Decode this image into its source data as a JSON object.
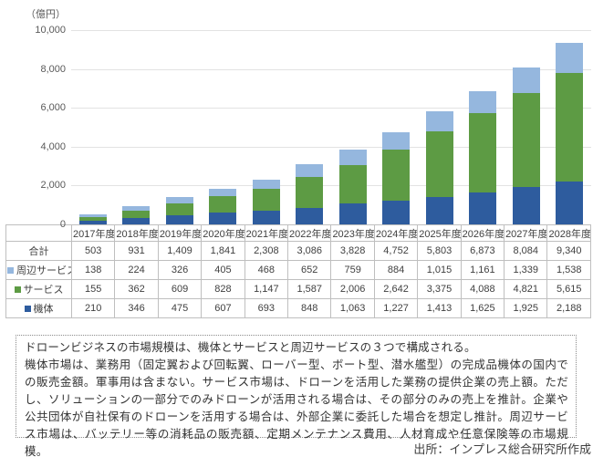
{
  "chart_data": {
    "type": "bar",
    "subtype": "stacked",
    "title": "",
    "unit_label": "（億円）",
    "xlabel": "",
    "ylabel": "（億円）",
    "ylim": [
      0,
      10000
    ],
    "ytick_step": 2000,
    "ytick_labels": [
      "0",
      "2,000",
      "4,000",
      "6,000",
      "8,000",
      "10,000"
    ],
    "grid": true,
    "legend_position": "table-left",
    "categories": [
      "2017年度",
      "2018年度",
      "2019年度",
      "2020年度",
      "2021年度",
      "2022年度",
      "2023年度",
      "2024年度",
      "2025年度",
      "2026年度",
      "2027年度",
      "2028年度"
    ],
    "series": [
      {
        "name": "機体",
        "color": "#2e5c9e",
        "values": [
          210,
          346,
          475,
          607,
          693,
          848,
          1063,
          1227,
          1413,
          1625,
          1925,
          2188
        ]
      },
      {
        "name": "サービス",
        "color": "#5d9b44",
        "values": [
          155,
          362,
          609,
          828,
          1147,
          1587,
          2006,
          2642,
          3375,
          4088,
          4821,
          5615
        ]
      },
      {
        "name": "周辺サービス",
        "color": "#95b7de",
        "values": [
          138,
          224,
          326,
          405,
          468,
          652,
          759,
          884,
          1015,
          1161,
          1339,
          1538
        ]
      }
    ],
    "totals": {
      "name": "合計",
      "values": [
        503,
        931,
        1409,
        1841,
        2308,
        3086,
        3828,
        4752,
        5803,
        6873,
        8084,
        9340
      ]
    }
  },
  "table": {
    "row_order": [
      "合計",
      "周辺サービス",
      "サービス",
      "機体"
    ]
  },
  "note": {
    "lines": [
      "ドローンビジネスの市場規模は、機体とサービスと周辺サービスの３つで構成される。",
      "機体市場は、業務用（固定翼および回転翼、ローバー型、ボート型、潜水艦型）の完成品機体の国内での販売金額。軍事用は含まない。サービス市場は、ドローンを活用した業務の提供企業の売上額。ただし、ソリューションの一部分でのみドローンが活用される場合は、その部分のみの売上を推計。企業や公共団体が自社保有のドローンを活用する場合は、外部企業に委託した場合を想定し推計。周辺サービス市場は、バッテリー等の消耗品の販売額、定期メンテナンス費用、人材育成や任意保険等の市場規模。"
    ]
  },
  "source": {
    "text": "出所：インプレス総合研究所作成"
  }
}
